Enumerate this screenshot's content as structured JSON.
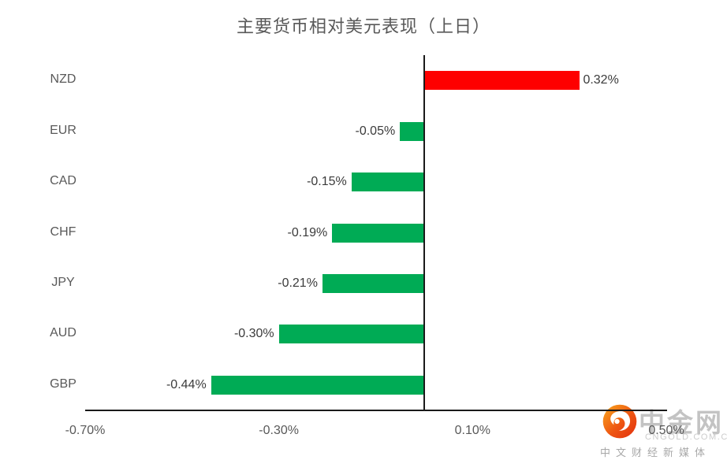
{
  "chart_data": {
    "type": "bar",
    "orientation": "horizontal",
    "title": "主要货币相对美元表现（上日）",
    "categories": [
      "NZD",
      "EUR",
      "CAD",
      "CHF",
      "JPY",
      "AUD",
      "GBP"
    ],
    "values": [
      0.32,
      -0.05,
      -0.15,
      -0.19,
      -0.21,
      -0.3,
      -0.44
    ],
    "value_labels": [
      "0.32%",
      "-0.05%",
      "-0.15%",
      "-0.19%",
      "-0.21%",
      "-0.30%",
      "-0.44%"
    ],
    "x_ticks": [
      {
        "value": -0.7,
        "label": "-0.70%"
      },
      {
        "value": -0.3,
        "label": "-0.30%"
      },
      {
        "value": 0.1,
        "label": "0.10%"
      },
      {
        "value": 0.5,
        "label": "0.50%"
      }
    ],
    "xlim": [
      -0.7,
      0.5
    ],
    "positive_color": "#fe0000",
    "negative_color": "#00ab55",
    "grid": false,
    "legend": false,
    "xlabel": "",
    "ylabel": ""
  },
  "watermark": {
    "brand": "中金网",
    "domain": "CNGOLD.COM.CN",
    "tagline": "中文财经新媒体"
  }
}
